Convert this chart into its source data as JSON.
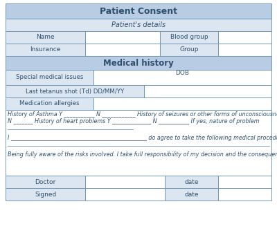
{
  "title": "Patient Consent",
  "header_bg": "#b8cce4",
  "subheader_bg": "#dce6f1",
  "cell_bg": "#ffffff",
  "label_bg": "#dce6f1",
  "border_color": "#7096b8",
  "text_color": "#2f4f6f",
  "sections": {
    "patient_details_label": "Patient's details",
    "medical_history_label": "Medical history",
    "name_label": "Name",
    "blood_group_label": "Blood group",
    "insurance_label": "Insurance",
    "group_label": "Group",
    "special_label": "Special medical issues",
    "dob_label": "DOB",
    "tetanus_label": "Last tetanus shot (Td) DD/MM/YY",
    "med_allerg_label": "Medication allergies",
    "free_text1": "History of Asthma Y ___________ N ____________ History of seizures or other forms of unconsciousness Y ________",
    "free_text2": "N _______ History of heart problems Y ______________ N ___________ If yes, nature of problem",
    "free_text3": "I _________________________________________________ do agree to take the following medical procedure",
    "free_text4": "Being fully aware of the risks involved. I take full responsibility of my decision and the consequences of the same.",
    "doctor_label": "Doctor",
    "signed_label": "Signed",
    "date_label": "date"
  }
}
